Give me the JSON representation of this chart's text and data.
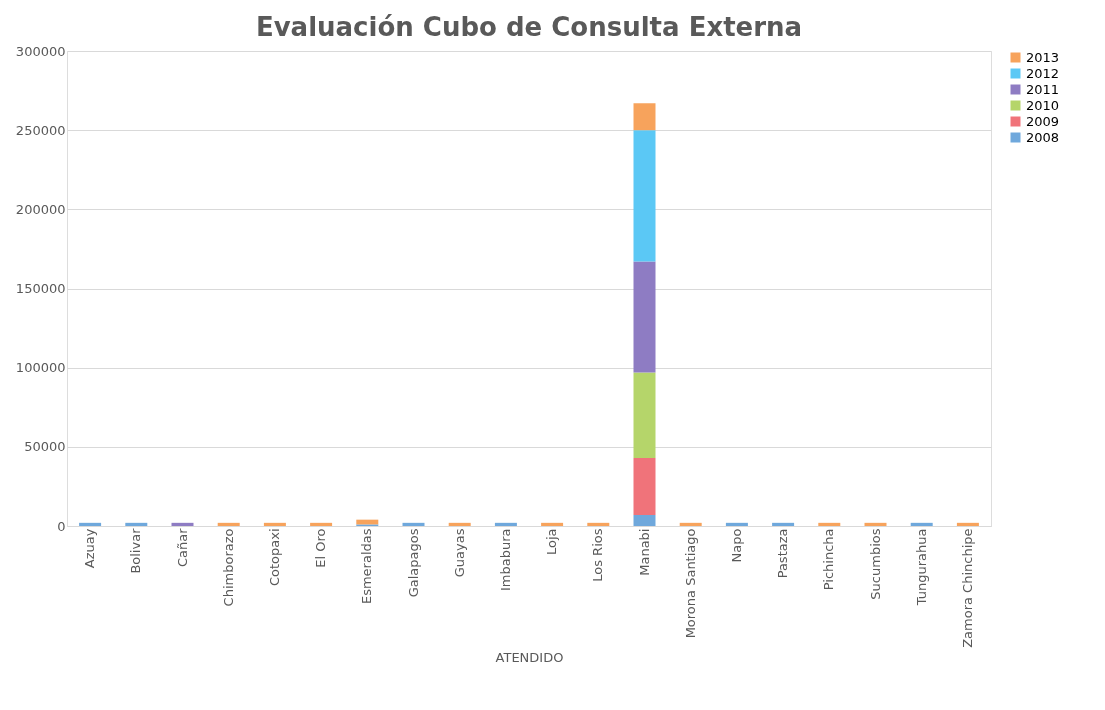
{
  "chart_data": {
    "type": "bar",
    "stacked": true,
    "title": "Evaluación Cubo de Consulta Externa",
    "xlabel": "ATENDIDO",
    "categories": [
      "Azuay",
      "Bolivar",
      "Cañar",
      "Chimborazo",
      "Cotopaxi",
      "El Oro",
      "Esmeraldas",
      "Galapagos",
      "Guayas",
      "Imbabura",
      "Loja",
      "Los Rios",
      "Manabi",
      "Morona Santiago",
      "Napo",
      "Pastaza",
      "Pichincha",
      "Sucumbios",
      "Tungurahua",
      "Zamora Chinchipe"
    ],
    "series": [
      {
        "name": "2008",
        "color": "#6fa8dc",
        "values": [
          2000,
          2000,
          null,
          null,
          null,
          null,
          1000,
          2000,
          null,
          2000,
          null,
          null,
          7000,
          null,
          2000,
          2000,
          null,
          null,
          2000,
          null
        ]
      },
      {
        "name": "2009",
        "color": "#f0737a",
        "values": [
          null,
          null,
          null,
          null,
          null,
          null,
          null,
          null,
          null,
          null,
          null,
          null,
          36000,
          null,
          null,
          null,
          null,
          null,
          null,
          null
        ]
      },
      {
        "name": "2010",
        "color": "#b5d56a",
        "values": [
          null,
          null,
          null,
          null,
          null,
          null,
          null,
          null,
          null,
          null,
          null,
          null,
          54000,
          null,
          null,
          null,
          null,
          null,
          null,
          null
        ]
      },
      {
        "name": "2011",
        "color": "#8e7cc3",
        "values": [
          null,
          null,
          2000,
          null,
          null,
          null,
          null,
          null,
          null,
          null,
          null,
          null,
          70000,
          null,
          null,
          null,
          null,
          null,
          null,
          null
        ]
      },
      {
        "name": "2012",
        "color": "#5bc8f5",
        "values": [
          null,
          null,
          null,
          null,
          null,
          null,
          null,
          null,
          null,
          null,
          null,
          null,
          83000,
          null,
          null,
          null,
          null,
          null,
          null,
          null
        ]
      },
      {
        "name": "2013",
        "color": "#f7a35c",
        "values": [
          null,
          null,
          null,
          2000,
          2000,
          2000,
          3000,
          null,
          2000,
          null,
          2000,
          2000,
          17000,
          2000,
          null,
          null,
          2000,
          2000,
          null,
          2000
        ]
      }
    ],
    "ylim": [
      0,
      300000
    ],
    "yticks": [
      0,
      50000,
      100000,
      150000,
      200000,
      250000,
      300000
    ],
    "grid": "y",
    "legend": "right"
  }
}
